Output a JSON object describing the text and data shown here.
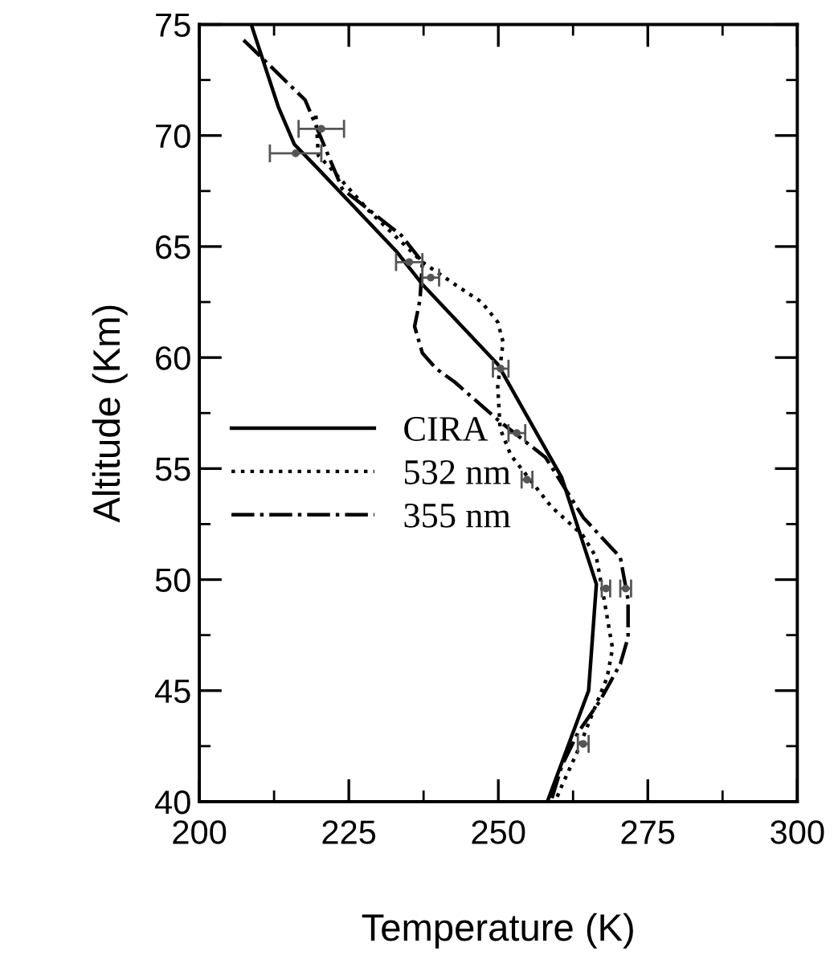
{
  "chart_data": {
    "type": "line",
    "xlabel": "Temperature (K)",
    "ylabel": "Altitude (Km)",
    "xlim": [
      200,
      300
    ],
    "xticks": [
      200,
      225,
      250,
      275,
      300
    ],
    "ylim": [
      40,
      75
    ],
    "yticks": [
      40,
      45,
      50,
      55,
      60,
      65,
      70,
      75
    ],
    "grid": false,
    "legend": "left",
    "marker": "none",
    "series": [
      {
        "name": "CIRA",
        "color": "#000000",
        "line_style": "solid",
        "x": [
          208.8,
          213.2,
          215.9,
          219.5,
          232.9,
          237.3,
          249.9,
          260.6,
          266.4,
          265.1,
          258.2
        ],
        "values": [
          74.9,
          71.3,
          69.6,
          68.6,
          64.8,
          63.3,
          59.7,
          54.6,
          49.8,
          45.0,
          40.0
        ]
      },
      {
        "name": "532 nm",
        "color": "#000000",
        "line_style": "dotted",
        "x": [
          219.5,
          219.9,
          221.7,
          228.4,
          237.3,
          242.7,
          247.2,
          249.9,
          250.8,
          249.9,
          250.3,
          252.1,
          258.8,
          264.1,
          266.4,
          267.7,
          269.1,
          268.2,
          265.5,
          263.3,
          260.6,
          259.5
        ],
        "values": [
          70.9,
          69.1,
          68.6,
          66.6,
          64.3,
          63.3,
          62.5,
          61.6,
          60.7,
          58.7,
          56.8,
          55.6,
          53.3,
          52.0,
          51.0,
          49.1,
          46.9,
          45.6,
          43.8,
          42.3,
          40.7,
          40.0
        ]
      },
      {
        "name": "355 nm",
        "color": "#000000",
        "line_style": "dashdot",
        "x": [
          207.4,
          217.7,
          223.9,
          233.8,
          237.3,
          236.9,
          236.0,
          237.3,
          239.6,
          242.7,
          249.9,
          257.9,
          264.2,
          270.4,
          271.7,
          271.7,
          270.4,
          266.9,
          263.3,
          260.6,
          258.8
        ],
        "values": [
          74.3,
          71.6,
          67.6,
          65.5,
          64.3,
          62.6,
          61.4,
          60.2,
          59.5,
          58.9,
          57.2,
          55.5,
          52.8,
          51.0,
          49.1,
          47.4,
          46.2,
          44.5,
          43.1,
          41.6,
          40.0
        ]
      },
      {
        "type": "scatter",
        "marker": "circle",
        "color": "#555555",
        "x": [
          220.4,
          216.1,
          235.1,
          238.7,
          250.4,
          253.1,
          254.8,
          268.0,
          271.3,
          264.2
        ],
        "values": [
          70.3,
          69.2,
          64.3,
          63.6,
          59.5,
          56.6,
          54.5,
          49.6,
          49.6,
          42.6
        ],
        "xerrors": [
          3.8,
          4.3,
          2.2,
          1.4,
          1.3,
          1.4,
          0.9,
          0.7,
          0.9,
          0.9
        ]
      }
    ]
  }
}
